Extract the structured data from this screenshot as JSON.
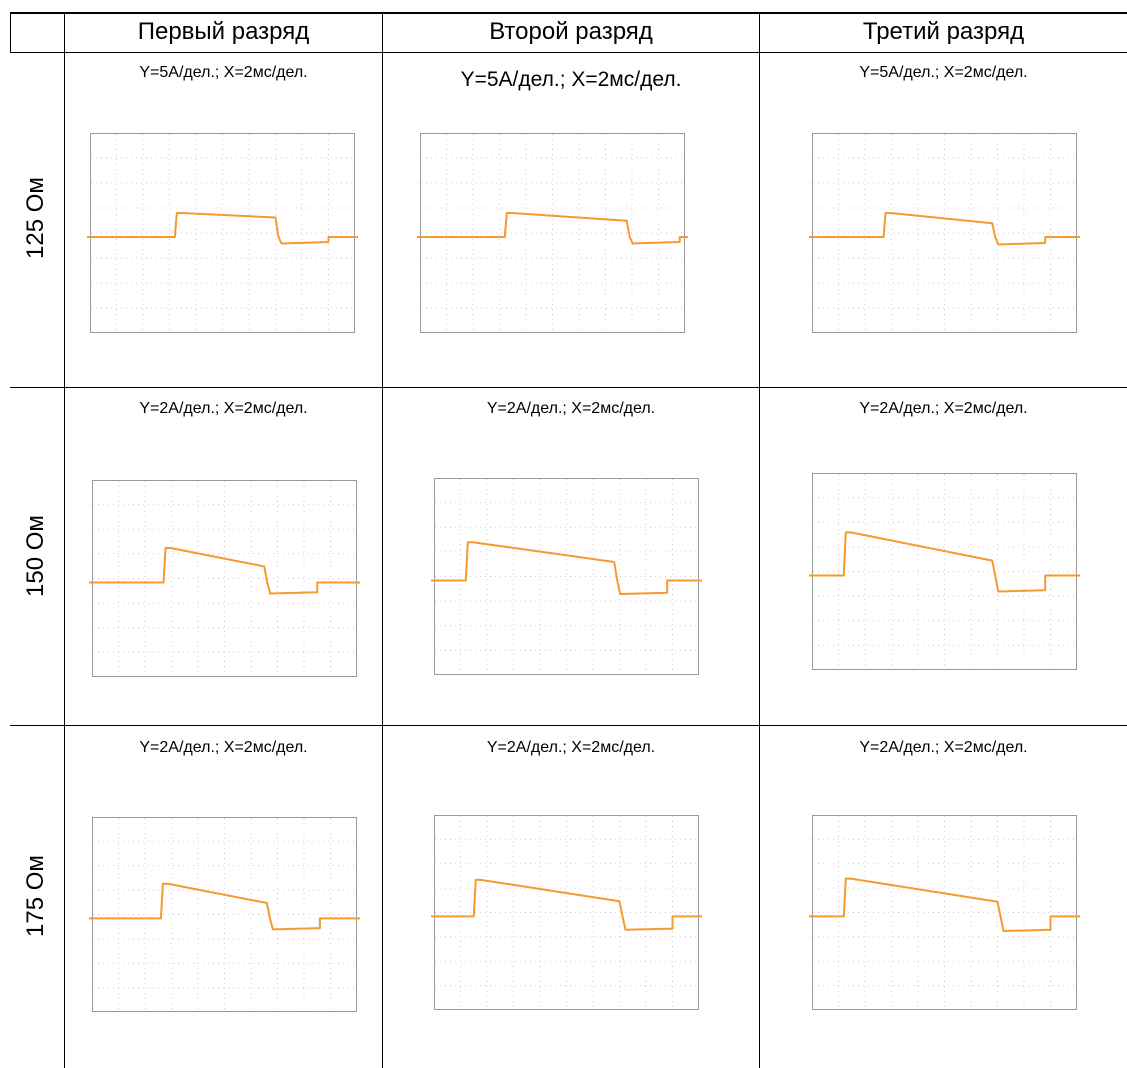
{
  "table": {
    "columns": [
      "",
      "Первый разряд",
      "Второй разряд",
      "Третий разряд"
    ],
    "rows": [
      {
        "label": "125 Ом",
        "cells": [
          {
            "caption": "Y=5A/дел.; X=2мс/дел.",
            "shape": {
              "rise": 0.32,
              "top_start": 0.78,
              "top_end": 0.96,
              "drop_t": 0.7,
              "bottom_start": -0.26,
              "bottom_end": -0.2,
              "end_t": 0.9
            }
          },
          {
            "caption": "Y=5A/дел.; X=2мс/дел.",
            "shape": {
              "rise": 0.32,
              "top_start": 0.65,
              "top_end": 0.96,
              "drop_t": 0.78,
              "bottom_start": -0.26,
              "bottom_end": -0.2,
              "end_t": 0.98
            }
          },
          {
            "caption": "Y=5A/дел.; X=2мс/дел.",
            "shape": {
              "rise": 0.27,
              "top_start": 0.55,
              "top_end": 0.96,
              "drop_t": 0.68,
              "bottom_start": -0.3,
              "bottom_end": -0.24,
              "end_t": 0.88
            }
          }
        ]
      },
      {
        "label": "150 Ом",
        "cells": [
          {
            "caption": "Y=2A/дел.; X=2мс/дел.",
            "shape": {
              "rise": 0.27,
              "top_start": 0.65,
              "top_end": 1.4,
              "drop_t": 0.65,
              "bottom_start": -0.45,
              "bottom_end": -0.4,
              "end_t": 0.85
            }
          },
          {
            "caption": "Y=2A/дел.; X=2мс/дел.",
            "shape": {
              "rise": 0.12,
              "top_start": 0.75,
              "top_end": 1.55,
              "drop_t": 0.68,
              "bottom_start": -0.55,
              "bottom_end": -0.5,
              "end_t": 0.88
            }
          },
          {
            "caption": "Y=2A/дел.; X=2мс/дел.",
            "shape": {
              "rise": 0.12,
              "top_start": 0.6,
              "top_end": 1.75,
              "drop_t": 0.68,
              "bottom_start": -0.65,
              "bottom_end": -0.6,
              "end_t": 0.88
            }
          }
        ]
      },
      {
        "label": "175 Ом",
        "cells": [
          {
            "caption": "Y=2A/дел.; X=2мс/дел.",
            "shape": {
              "rise": 0.26,
              "top_start": 0.63,
              "top_end": 1.42,
              "drop_t": 0.66,
              "bottom_start": -0.45,
              "bottom_end": -0.4,
              "end_t": 0.86
            }
          },
          {
            "caption": "Y=2A/дел.; X=2мс/дел.",
            "shape": {
              "rise": 0.15,
              "top_start": 0.62,
              "top_end": 1.5,
              "drop_t": 0.7,
              "bottom_start": -0.55,
              "bottom_end": -0.5,
              "end_t": 0.9
            }
          },
          {
            "caption": "Y=2A/дел.; X=2мс/дел.",
            "shape": {
              "rise": 0.12,
              "top_start": 0.6,
              "top_end": 1.55,
              "drop_t": 0.7,
              "bottom_start": -0.6,
              "bottom_end": -0.55,
              "end_t": 0.9
            }
          }
        ]
      }
    ]
  },
  "colors": {
    "trace": "#f59a2c",
    "grid": "#cfcfcf",
    "frame": "#9a9a9a"
  }
}
